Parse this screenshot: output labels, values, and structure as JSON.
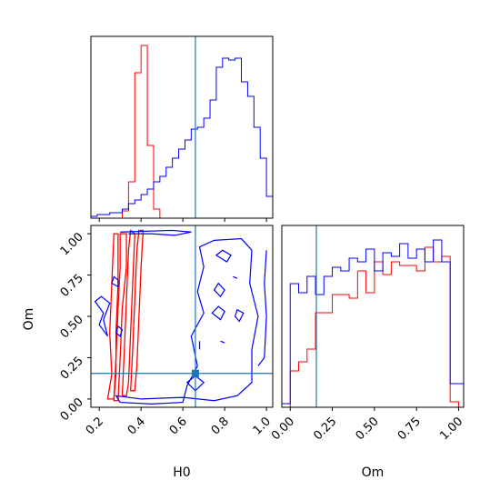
{
  "chart_data": {
    "type": "corner",
    "parameters": [
      "H0",
      "Om"
    ],
    "truth": {
      "H0": 0.66,
      "Om": 0.155
    },
    "colors": {
      "red": "#ff0000",
      "blue": "#0000ff",
      "truth": "#1f77b4"
    },
    "panels": {
      "H0_marginal": {
        "type": "histogram",
        "x_range": [
          0.16,
          1.03
        ],
        "bin_edges": [
          0.16,
          0.19,
          0.22,
          0.25,
          0.28,
          0.31,
          0.34,
          0.37,
          0.4,
          0.43,
          0.46,
          0.49,
          0.52,
          0.55,
          0.58,
          0.61,
          0.64,
          0.67,
          0.7,
          0.73,
          0.76,
          0.79,
          0.82,
          0.85,
          0.88,
          0.91,
          0.94,
          0.97,
          1.0,
          1.03
        ],
        "series": [
          {
            "color": "red",
            "counts": [
              0,
              0,
              0,
              0,
              0,
              0.04,
              0.2,
              0.8,
              0.95,
              0.4,
              0.05,
              0,
              0,
              0,
              0,
              0,
              0,
              0,
              0,
              0,
              0,
              0,
              0,
              0,
              0,
              0,
              0,
              0,
              0
            ]
          },
          {
            "color": "blue",
            "counts": [
              0.01,
              0.02,
              0.02,
              0.03,
              0.03,
              0.05,
              0.08,
              0.1,
              0.13,
              0.16,
              0.2,
              0.23,
              0.28,
              0.33,
              0.38,
              0.43,
              0.49,
              0.5,
              0.55,
              0.65,
              0.83,
              0.88,
              0.87,
              0.88,
              0.75,
              0.67,
              0.5,
              0.33,
              0.12
            ]
          }
        ]
      },
      "Om_marginal": {
        "type": "histogram",
        "x_range": [
          -0.05,
          1.03
        ],
        "bin_edges": [
          -0.05,
          0.0,
          0.05,
          0.1,
          0.15,
          0.2,
          0.25,
          0.3,
          0.35,
          0.4,
          0.45,
          0.5,
          0.55,
          0.6,
          0.65,
          0.7,
          0.75,
          0.8,
          0.85,
          0.9,
          0.95,
          1.0,
          1.03
        ],
        "series": [
          {
            "color": "red",
            "counts": [
              0,
              0.2,
              0.25,
              0.32,
              0.52,
              0.52,
              0.62,
              0.62,
              0.6,
              0.75,
              0.63,
              0.8,
              0.73,
              0.8,
              0.78,
              0.78,
              0.75,
              0.88,
              0.8,
              0.83,
              0.03,
              0
            ]
          },
          {
            "color": "blue",
            "counts": [
              0.02,
              0.68,
              0.63,
              0.72,
              0.62,
              0.72,
              0.77,
              0.75,
              0.82,
              0.8,
              0.87,
              0.75,
              0.85,
              0.83,
              0.9,
              0.82,
              0.87,
              0.8,
              0.92,
              0.8,
              0.13,
              0.13
            ]
          }
        ]
      },
      "joint": {
        "x_range": [
          0.16,
          1.03
        ],
        "y_range": [
          -0.05,
          1.05
        ],
        "red_contours": [
          [
            [
              0.24,
              0.0
            ],
            [
              0.26,
              0.15
            ],
            [
              0.25,
              0.4
            ],
            [
              0.26,
              0.7
            ],
            [
              0.27,
              1.0
            ],
            [
              0.29,
              1.0
            ],
            [
              0.29,
              0.7
            ],
            [
              0.28,
              0.4
            ],
            [
              0.28,
              0.15
            ],
            [
              0.27,
              0.0
            ]
          ],
          [
            [
              0.27,
              -0.01
            ],
            [
              0.28,
              0.25
            ],
            [
              0.29,
              0.55
            ],
            [
              0.3,
              0.8
            ],
            [
              0.3,
              1.0
            ],
            [
              0.33,
              1.0
            ],
            [
              0.33,
              0.8
            ],
            [
              0.31,
              0.55
            ],
            [
              0.3,
              0.25
            ],
            [
              0.29,
              -0.01
            ]
          ],
          [
            [
              0.31,
              0.02
            ],
            [
              0.32,
              0.3
            ],
            [
              0.33,
              0.6
            ],
            [
              0.34,
              0.9
            ],
            [
              0.35,
              1.02
            ],
            [
              0.37,
              1.0
            ],
            [
              0.36,
              0.7
            ],
            [
              0.35,
              0.4
            ],
            [
              0.34,
              0.1
            ],
            [
              0.33,
              0.02
            ]
          ],
          [
            [
              0.35,
              0.05
            ],
            [
              0.36,
              0.3
            ],
            [
              0.37,
              0.6
            ],
            [
              0.38,
              0.9
            ],
            [
              0.39,
              1.02
            ],
            [
              0.41,
              1.02
            ],
            [
              0.4,
              0.8
            ],
            [
              0.39,
              0.5
            ],
            [
              0.38,
              0.2
            ],
            [
              0.37,
              0.05
            ]
          ]
        ],
        "blue_contours": [
          [
            [
              0.3,
              1.01
            ],
            [
              0.55,
              1.02
            ],
            [
              0.64,
              1.01
            ],
            [
              0.56,
              0.99
            ],
            [
              0.45,
              1.0
            ],
            [
              0.34,
              1.0
            ]
          ],
          [
            [
              0.6,
              -0.02
            ],
            [
              0.45,
              -0.03
            ],
            [
              0.3,
              -0.02
            ],
            [
              0.28,
              0.02
            ],
            [
              0.4,
              0.0
            ],
            [
              0.6,
              0.01
            ],
            [
              0.75,
              -0.01
            ],
            [
              0.86,
              0.02
            ],
            [
              0.93,
              0.1
            ],
            [
              0.93,
              0.3
            ],
            [
              0.96,
              0.5
            ],
            [
              0.92,
              0.7
            ],
            [
              0.93,
              0.9
            ],
            [
              0.88,
              0.97
            ],
            [
              0.75,
              0.96
            ],
            [
              0.68,
              0.92
            ],
            [
              0.7,
              0.8
            ],
            [
              0.67,
              0.65
            ],
            [
              0.7,
              0.52
            ],
            [
              0.64,
              0.38
            ],
            [
              0.67,
              0.2
            ],
            [
              0.62,
              0.08
            ]
          ],
          [
            [
              0.18,
              0.59
            ],
            [
              0.22,
              0.52
            ],
            [
              0.2,
              0.45
            ],
            [
              0.24,
              0.38
            ],
            [
              0.22,
              0.48
            ],
            [
              0.25,
              0.58
            ],
            [
              0.21,
              0.62
            ]
          ],
          [
            [
              0.26,
              0.7
            ],
            [
              0.29,
              0.68
            ],
            [
              0.29,
              0.72
            ],
            [
              0.27,
              0.74
            ]
          ],
          [
            [
              0.28,
              0.4
            ],
            [
              0.3,
              0.38
            ],
            [
              0.31,
              0.42
            ],
            [
              0.29,
              0.44
            ]
          ],
          [
            [
              0.62,
              0.1
            ],
            [
              0.66,
              0.05
            ],
            [
              0.7,
              0.1
            ],
            [
              0.66,
              0.14
            ]
          ],
          [
            [
              0.76,
              0.87
            ],
            [
              0.81,
              0.83
            ],
            [
              0.83,
              0.87
            ],
            [
              0.79,
              0.9
            ]
          ],
          [
            [
              0.75,
              0.66
            ],
            [
              0.78,
              0.62
            ],
            [
              0.8,
              0.66
            ],
            [
              0.77,
              0.7
            ]
          ],
          [
            [
              0.74,
              0.52
            ],
            [
              0.78,
              0.48
            ],
            [
              0.8,
              0.53
            ],
            [
              0.77,
              0.56
            ]
          ],
          [
            [
              0.85,
              0.5
            ],
            [
              0.87,
              0.47
            ],
            [
              0.89,
              0.52
            ],
            [
              0.86,
              0.54
            ]
          ],
          [
            [
              0.96,
              0.2
            ],
            [
              0.99,
              0.25
            ],
            [
              1.0,
              0.5
            ],
            [
              0.99,
              0.7
            ],
            [
              1.0,
              0.9
            ]
          ],
          [
            [
              0.84,
              0.74
            ],
            [
              0.86,
              0.73
            ]
          ],
          [
            [
              0.78,
              0.35
            ],
            [
              0.8,
              0.34
            ]
          ],
          [
            [
              0.68,
              0.35
            ],
            [
              0.68,
              0.3
            ]
          ]
        ]
      }
    },
    "x_ticks": {
      "H0": [
        "0.2",
        "0.4",
        "0.6",
        "0.8",
        "1.0"
      ],
      "Om": [
        "0.00",
        "0.25",
        "0.50",
        "0.75",
        "1.00"
      ]
    },
    "y_ticks": {
      "Om": [
        "0.00",
        "0.25",
        "0.50",
        "0.75",
        "1.00"
      ]
    },
    "xlabel": {
      "left": "H0",
      "right": "Om"
    },
    "ylabel": "Om"
  }
}
